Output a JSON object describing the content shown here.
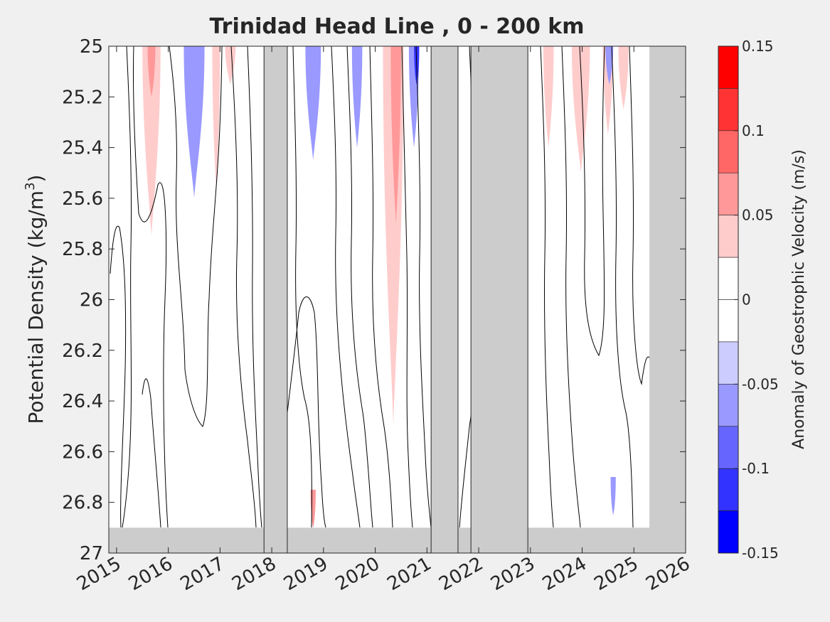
{
  "chart_data": {
    "type": "heatmap",
    "title": "Trinidad Head Line , 0 - 200 km",
    "xlabel": "",
    "ylabel": "Potential Density (kg/m",
    "ylabel_sup": "3",
    "ylabel_tail": ")",
    "xlim": [
      2014.85,
      2026.0
    ],
    "ylim": [
      25.0,
      27.0
    ],
    "y_reversed": true,
    "x_ticks": [
      "2015",
      "2016",
      "2017",
      "2018",
      "2019",
      "2020",
      "2021",
      "2022",
      "2023",
      "2024",
      "2025",
      "2026"
    ],
    "y_ticks": [
      "25",
      "25.2",
      "25.4",
      "25.6",
      "25.8",
      "26",
      "26.2",
      "26.4",
      "26.6",
      "26.8",
      "27"
    ],
    "no_data_periods": [
      [
        2017.85,
        2018.3
      ],
      [
        2021.08,
        2021.6
      ],
      [
        2021.85,
        2022.95
      ],
      [
        2025.3,
        2026.0
      ]
    ],
    "no_data_bottom_density": 26.9,
    "anomaly_patches": [
      {
        "x0": 2015.5,
        "x1": 2015.85,
        "top": 25.0,
        "bottom": 25.75,
        "value": 0.05
      },
      {
        "x0": 2015.6,
        "x1": 2015.75,
        "top": 25.0,
        "bottom": 25.2,
        "value": 0.075
      },
      {
        "x0": 2016.3,
        "x1": 2016.7,
        "top": 25.0,
        "bottom": 25.6,
        "value": -0.05
      },
      {
        "x0": 2016.85,
        "x1": 2017.0,
        "top": 25.0,
        "bottom": 25.55,
        "value": 0.05
      },
      {
        "x0": 2017.1,
        "x1": 2017.3,
        "top": 25.0,
        "bottom": 25.15,
        "value": 0.05
      },
      {
        "x0": 2018.65,
        "x1": 2018.95,
        "top": 25.0,
        "bottom": 25.45,
        "value": -0.05
      },
      {
        "x0": 2018.75,
        "x1": 2018.85,
        "top": 26.75,
        "bottom": 26.9,
        "value": 0.075
      },
      {
        "x0": 2019.55,
        "x1": 2019.75,
        "top": 25.0,
        "bottom": 25.4,
        "value": -0.05
      },
      {
        "x0": 2020.15,
        "x1": 2020.55,
        "top": 25.0,
        "bottom": 26.5,
        "value": 0.05
      },
      {
        "x0": 2020.3,
        "x1": 2020.5,
        "top": 25.0,
        "bottom": 25.7,
        "value": 0.075
      },
      {
        "x0": 2020.65,
        "x1": 2020.85,
        "top": 25.0,
        "bottom": 25.4,
        "value": -0.05
      },
      {
        "x0": 2020.75,
        "x1": 2020.85,
        "top": 25.0,
        "bottom": 25.15,
        "value": -0.1
      },
      {
        "x0": 2023.25,
        "x1": 2023.45,
        "top": 25.0,
        "bottom": 25.4,
        "value": 0.05
      },
      {
        "x0": 2023.8,
        "x1": 2024.15,
        "top": 25.0,
        "bottom": 25.5,
        "value": 0.05
      },
      {
        "x0": 2024.4,
        "x1": 2024.6,
        "top": 25.0,
        "bottom": 25.35,
        "value": 0.05
      },
      {
        "x0": 2024.45,
        "x1": 2024.6,
        "top": 25.0,
        "bottom": 25.15,
        "value": -0.05
      },
      {
        "x0": 2024.7,
        "x1": 2024.9,
        "top": 25.0,
        "bottom": 25.25,
        "value": 0.05
      },
      {
        "x0": 2024.55,
        "x1": 2024.65,
        "top": 26.7,
        "bottom": 26.85,
        "value": -0.05
      }
    ],
    "colorbar": {
      "label": "Anomaly of Geostrophic Velocity (m/s)",
      "ticks": [
        "0.15",
        "0.1",
        "0.05",
        "0",
        "-0.05",
        "-0.1",
        "-0.15"
      ],
      "range": [
        -0.15,
        0.15
      ],
      "levels": [
        {
          "from": 0.125,
          "to": 0.15,
          "color": "#ff0000"
        },
        {
          "from": 0.1,
          "to": 0.125,
          "color": "#ff3333"
        },
        {
          "from": 0.075,
          "to": 0.1,
          "color": "#ff6666"
        },
        {
          "from": 0.05,
          "to": 0.075,
          "color": "#ff9999"
        },
        {
          "from": 0.025,
          "to": 0.05,
          "color": "#ffcccc"
        },
        {
          "from": 0.0,
          "to": 0.025,
          "color": "#ffffff"
        },
        {
          "from": -0.025,
          "to": 0.0,
          "color": "#ffffff"
        },
        {
          "from": -0.05,
          "to": -0.025,
          "color": "#ccccff"
        },
        {
          "from": -0.075,
          "to": -0.05,
          "color": "#9999ff"
        },
        {
          "from": -0.1,
          "to": -0.075,
          "color": "#6666ff"
        },
        {
          "from": -0.125,
          "to": -0.1,
          "color": "#3333ff"
        },
        {
          "from": -0.15,
          "to": -0.125,
          "color": "#0000ff"
        }
      ]
    },
    "colors": {
      "no_data": "#cccccc",
      "plot_background": "#ffffff",
      "figure_background": "#f0f0f0",
      "axis": "#262626"
    }
  }
}
